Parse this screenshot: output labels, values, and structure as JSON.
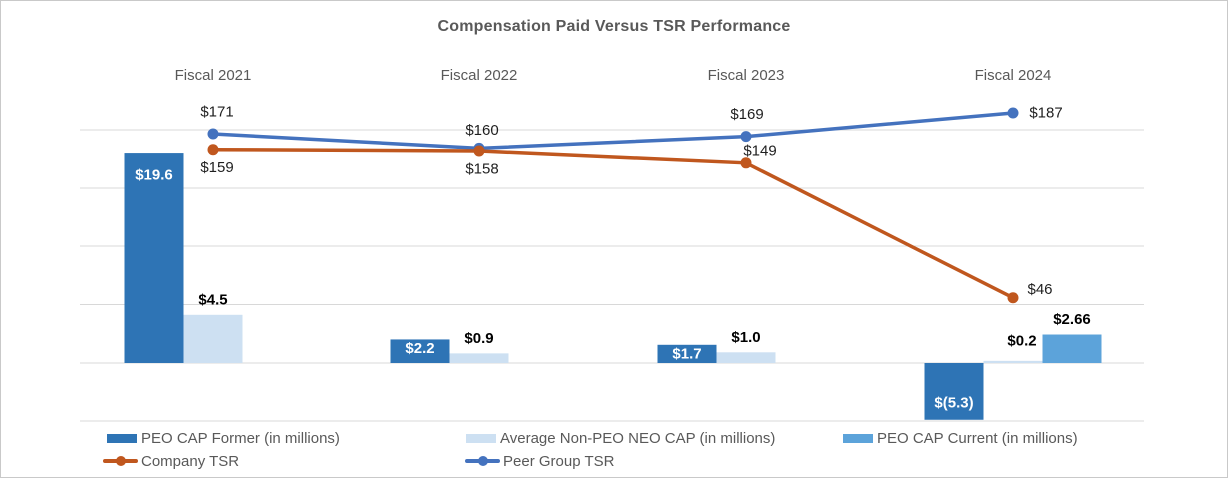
{
  "title": "Compensation Paid Versus TSR Performance",
  "chart_data": {
    "type": "combo-bar-line",
    "title": "Compensation Paid Versus TSR Performance",
    "categories": [
      "Fiscal 2021",
      "Fiscal 2022",
      "Fiscal 2023",
      "Fiscal 2024"
    ],
    "gridlines": true,
    "legend_position": "bottom-left",
    "bar_unit": "USD millions",
    "bar_series": [
      {
        "name": "PEO CAP Former (in millions)",
        "color": "#2E74B5",
        "values": [
          19.6,
          2.2,
          1.7,
          -5.3
        ],
        "labels": [
          "$19.6",
          "$2.2",
          "$1.7",
          "$(5.3)"
        ]
      },
      {
        "name": "Average Non-PEO NEO CAP (in millions)",
        "color": "#CDE0F2",
        "values": [
          4.5,
          0.9,
          1.0,
          0.2
        ],
        "labels": [
          "$4.5",
          "$0.9",
          "$1.0",
          "$0.2"
        ]
      },
      {
        "name": "PEO CAP Current (in millions)",
        "color": "#5CA3DA",
        "values": [
          null,
          null,
          null,
          2.66
        ],
        "labels": [
          null,
          null,
          null,
          "$2.66"
        ]
      }
    ],
    "line_series": [
      {
        "name": "Peer Group TSR",
        "color": "#4472BE",
        "values": [
          171,
          160,
          169,
          187
        ],
        "labels": [
          "$171",
          "$160",
          "$169",
          "$187"
        ]
      },
      {
        "name": "Company TSR",
        "color": "#C0571E",
        "values": [
          159,
          158,
          149,
          46
        ],
        "labels": [
          "$159",
          "$158",
          "$149",
          "$46"
        ]
      }
    ]
  }
}
